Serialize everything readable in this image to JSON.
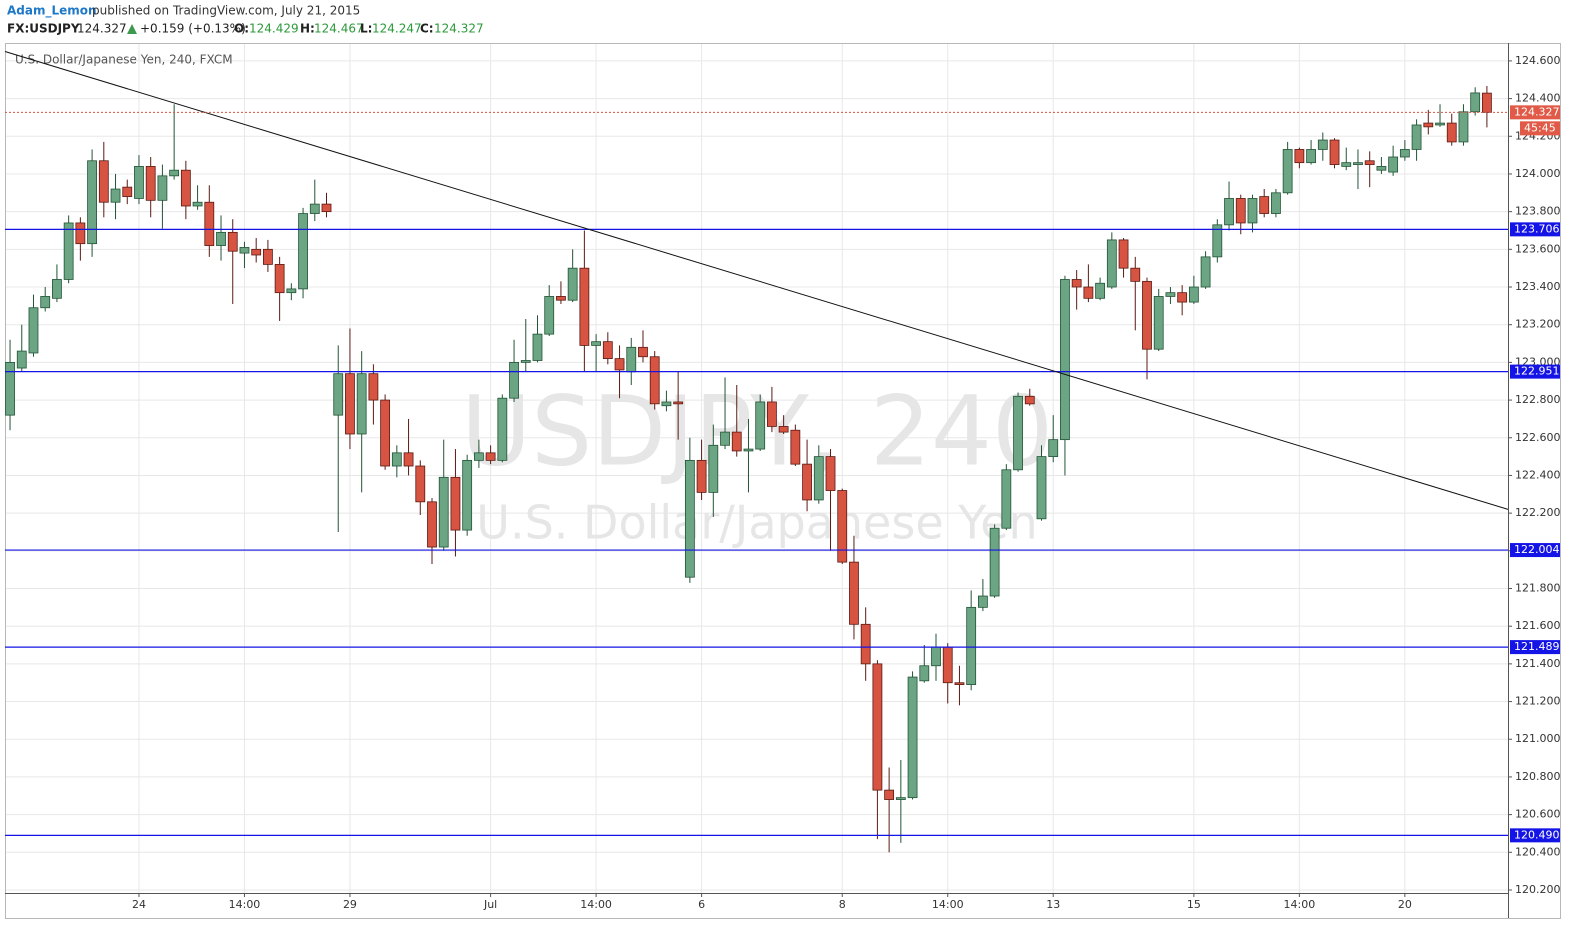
{
  "header": {
    "author": "Adam_Lemon",
    "published": "published on TradingView.com, July 21, 2015",
    "symbol": "FX:USDJPY",
    "last": "124.327",
    "change": "+0.159 (+0.13%)",
    "ohlc": [
      {
        "key": "O:",
        "value": "124.429"
      },
      {
        "key": "H:",
        "value": "124.467"
      },
      {
        "key": "L:",
        "value": "124.247"
      },
      {
        "key": "C:",
        "value": "124.327"
      }
    ]
  },
  "chart_data": {
    "type": "candlestick",
    "legend": "U.S. Dollar/Japanese Yen, 240, FXCM",
    "watermark": "USDJPY, 240",
    "watermark_subtitle": "U.S. Dollar/Japanese Yen",
    "categories": [
      null,
      null,
      null,
      null,
      null,
      null,
      null,
      null,
      null,
      null,
      null,
      "24",
      null,
      null,
      null,
      null,
      null,
      null,
      null,
      null,
      "14:00",
      null,
      null,
      null,
      null,
      null,
      null,
      null,
      null,
      "29",
      null,
      null,
      null,
      null,
      null,
      null,
      null,
      null,
      null,
      null,
      null,
      "Jul",
      null,
      null,
      null,
      null,
      null,
      null,
      null,
      null,
      "14:00",
      null,
      null,
      null,
      null,
      null,
      null,
      null,
      null,
      "6",
      null,
      null,
      null,
      null,
      null,
      null,
      null,
      null,
      null,
      null,
      null,
      "8",
      null,
      null,
      null,
      null,
      null,
      null,
      null,
      null,
      "14:00",
      null,
      null,
      null,
      null,
      null,
      null,
      null,
      null,
      "13",
      null,
      null,
      null,
      null,
      null,
      null,
      null,
      null,
      null,
      null,
      null,
      "15",
      null,
      null,
      null,
      null,
      null,
      null,
      null,
      null,
      "14:00",
      null,
      null,
      null,
      null,
      null,
      null,
      null,
      null,
      "20",
      null,
      null,
      null,
      null,
      null,
      null,
      null
    ],
    "open": [
      122.72,
      122.97,
      123.05,
      123.29,
      123.34,
      123.44,
      123.74,
      123.63,
      124.07,
      123.85,
      123.93,
      123.87,
      124.04,
      123.86,
      123.99,
      124.02,
      123.83,
      123.85,
      123.62,
      123.69,
      123.58,
      123.6,
      123.6,
      123.52,
      123.37,
      123.39,
      123.79,
      123.84,
      122.72,
      122.94,
      122.62,
      122.94,
      122.8,
      122.45,
      122.52,
      122.45,
      122.26,
      122.02,
      122.39,
      122.11,
      122.48,
      122.52,
      122.48,
      122.81,
      123.0,
      123.01,
      123.15,
      123.35,
      123.33,
      123.5,
      123.09,
      123.11,
      123.02,
      122.95,
      123.08,
      123.03,
      122.77,
      122.79,
      121.86,
      122.48,
      122.31,
      122.56,
      122.63,
      122.53,
      122.54,
      122.79,
      122.66,
      122.64,
      122.46,
      122.27,
      122.5,
      122.32,
      121.94,
      121.61,
      121.4,
      120.73,
      120.68,
      120.69,
      121.31,
      121.39,
      121.49,
      121.3,
      121.29,
      121.7,
      121.76,
      122.12,
      122.43,
      122.82,
      122.17,
      122.5,
      122.59,
      123.44,
      123.4,
      123.34,
      123.4,
      123.65,
      123.5,
      123.43,
      123.07,
      123.35,
      123.37,
      123.32,
      123.4,
      123.56,
      123.73,
      123.87,
      123.74,
      123.88,
      123.79,
      123.9,
      124.13,
      124.06,
      124.13,
      124.18,
      124.04,
      124.05,
      124.07,
      124.02,
      124.01,
      124.09,
      124.13,
      124.27,
      124.26,
      124.27,
      124.17,
      124.33,
      124.429
    ],
    "high": [
      123.12,
      123.2,
      123.36,
      123.4,
      123.52,
      123.78,
      123.77,
      124.13,
      124.17,
      124.0,
      123.97,
      124.1,
      124.09,
      124.05,
      124.37,
      124.07,
      123.94,
      123.94,
      123.78,
      123.76,
      123.64,
      123.66,
      123.65,
      123.56,
      123.42,
      123.82,
      123.97,
      123.9,
      123.09,
      123.18,
      123.06,
      122.99,
      122.83,
      122.56,
      122.7,
      122.48,
      122.28,
      122.59,
      122.54,
      122.51,
      122.59,
      122.56,
      122.83,
      123.12,
      123.23,
      123.25,
      123.41,
      123.43,
      123.6,
      123.7,
      123.15,
      123.16,
      123.09,
      123.13,
      123.17,
      123.06,
      122.85,
      122.95,
      122.6,
      122.59,
      122.67,
      122.92,
      122.88,
      122.7,
      122.83,
      122.87,
      122.72,
      122.67,
      122.59,
      122.56,
      122.54,
      122.33,
      122.08,
      121.7,
      121.42,
      120.85,
      120.89,
      121.36,
      121.5,
      121.56,
      121.51,
      121.39,
      121.79,
      121.85,
      122.14,
      122.46,
      122.84,
      122.86,
      122.56,
      122.72,
      123.46,
      123.49,
      123.52,
      123.45,
      123.69,
      123.66,
      123.56,
      123.45,
      123.39,
      123.4,
      123.41,
      123.46,
      123.59,
      123.76,
      123.96,
      123.89,
      123.89,
      123.92,
      123.92,
      124.17,
      124.14,
      124.18,
      124.22,
      124.19,
      124.14,
      124.13,
      124.12,
      124.09,
      124.15,
      124.18,
      124.29,
      124.34,
      124.37,
      124.32,
      124.37,
      124.46,
      124.467
    ],
    "low": [
      122.64,
      122.95,
      123.03,
      123.27,
      123.32,
      123.42,
      123.54,
      123.56,
      123.77,
      123.76,
      123.84,
      123.84,
      123.77,
      123.71,
      123.97,
      123.76,
      123.81,
      123.56,
      123.54,
      123.31,
      123.5,
      123.53,
      123.48,
      123.22,
      123.33,
      123.34,
      123.75,
      123.77,
      122.1,
      122.54,
      122.31,
      122.67,
      122.43,
      122.39,
      122.4,
      122.19,
      121.93,
      122.0,
      121.97,
      122.08,
      122.44,
      122.46,
      122.47,
      122.79,
      122.95,
      123.0,
      123.14,
      123.31,
      123.32,
      122.95,
      122.95,
      122.99,
      122.81,
      122.88,
      123.0,
      122.75,
      122.74,
      122.59,
      121.83,
      122.27,
      122.18,
      122.54,
      122.5,
      122.31,
      122.53,
      122.63,
      122.62,
      122.45,
      122.21,
      122.25,
      122.0,
      121.93,
      121.53,
      121.31,
      120.47,
      120.4,
      120.45,
      120.68,
      121.3,
      121.31,
      121.19,
      121.18,
      121.26,
      121.68,
      121.75,
      122.11,
      122.42,
      122.77,
      122.16,
      122.47,
      122.4,
      123.28,
      123.32,
      123.33,
      123.39,
      123.45,
      123.17,
      122.91,
      123.06,
      123.31,
      123.25,
      123.31,
      123.39,
      123.53,
      123.7,
      123.68,
      123.69,
      123.77,
      123.77,
      123.89,
      124.03,
      124.05,
      124.07,
      124.03,
      124.02,
      123.92,
      123.93,
      124.0,
      123.99,
      124.07,
      124.07,
      124.21,
      124.25,
      124.15,
      124.15,
      124.31,
      124.247
    ],
    "close": [
      123.0,
      123.06,
      123.29,
      123.35,
      123.44,
      123.74,
      123.63,
      124.07,
      123.85,
      123.92,
      123.88,
      124.04,
      123.86,
      123.99,
      124.02,
      123.83,
      123.85,
      123.62,
      123.69,
      123.59,
      123.61,
      123.57,
      123.52,
      123.37,
      123.39,
      123.79,
      123.84,
      123.8,
      122.94,
      122.62,
      122.94,
      122.8,
      122.45,
      122.52,
      122.45,
      122.26,
      122.02,
      122.39,
      122.11,
      122.48,
      122.52,
      122.48,
      122.81,
      123.0,
      123.01,
      123.15,
      123.35,
      123.33,
      123.5,
      123.09,
      123.11,
      123.02,
      122.96,
      123.08,
      123.03,
      122.78,
      122.79,
      122.78,
      122.48,
      122.31,
      122.56,
      122.63,
      122.53,
      122.54,
      122.79,
      122.66,
      122.63,
      122.46,
      122.27,
      122.5,
      122.32,
      121.94,
      121.61,
      121.4,
      120.73,
      120.68,
      120.69,
      121.33,
      121.39,
      121.49,
      121.3,
      121.29,
      121.7,
      121.76,
      122.12,
      122.43,
      122.82,
      122.78,
      122.5,
      122.59,
      123.44,
      123.4,
      123.34,
      123.42,
      123.65,
      123.5,
      123.43,
      123.07,
      123.35,
      123.37,
      123.32,
      123.4,
      123.56,
      123.73,
      123.87,
      123.74,
      123.87,
      123.79,
      123.9,
      124.13,
      124.06,
      124.13,
      124.18,
      124.05,
      124.06,
      124.06,
      124.05,
      124.04,
      124.09,
      124.13,
      124.26,
      124.25,
      124.27,
      124.17,
      124.33,
      124.43,
      124.327
    ],
    "up_color": "#6ba583",
    "down_color": "#d75442",
    "xlim": [
      -0.43,
      127.8
    ],
    "ylim": [
      120.184,
      124.695
    ],
    "yticks": [
      {
        "value": 120.2,
        "label": "120.200"
      },
      {
        "value": 120.4,
        "label": "120.400"
      },
      {
        "value": 120.6,
        "label": "120.600"
      },
      {
        "value": 120.8,
        "label": "120.800"
      },
      {
        "value": 121.0,
        "label": "121.000"
      },
      {
        "value": 121.2,
        "label": "121.200"
      },
      {
        "value": 121.4,
        "label": "121.400"
      },
      {
        "value": 121.6,
        "label": "121.600"
      },
      {
        "value": 121.8,
        "label": "121.800"
      },
      {
        "value": 122.0,
        "label": "122.000"
      },
      {
        "value": 122.2,
        "label": "122.200"
      },
      {
        "value": 122.4,
        "label": "122.400"
      },
      {
        "value": 122.6,
        "label": "122.600"
      },
      {
        "value": 122.8,
        "label": "122.800"
      },
      {
        "value": 123.0,
        "label": "123.000"
      },
      {
        "value": 123.2,
        "label": "123.200"
      },
      {
        "value": 123.4,
        "label": "123.400"
      },
      {
        "value": 123.6,
        "label": "123.600"
      },
      {
        "value": 123.8,
        "label": "123.800"
      },
      {
        "value": 124.0,
        "label": "124.000"
      },
      {
        "value": 124.2,
        "label": "124.200"
      },
      {
        "value": 124.4,
        "label": "124.400"
      },
      {
        "value": 124.6,
        "label": "124.600"
      }
    ],
    "grid": true,
    "levels": [
      {
        "value": 123.706,
        "label": "123.706"
      },
      {
        "value": 122.951,
        "label": "122.951"
      },
      {
        "value": 122.004,
        "label": "122.004"
      },
      {
        "value": 121.489,
        "label": "121.489"
      },
      {
        "value": 120.49,
        "label": "120.490"
      }
    ],
    "level_color": "#1414e6",
    "last_price": {
      "value": 124.327,
      "label": "124.327"
    },
    "countdown": "45:45",
    "trendline": {
      "x": [
        -0.43,
        127.8
      ],
      "y": [
        124.65,
        122.22
      ]
    }
  }
}
